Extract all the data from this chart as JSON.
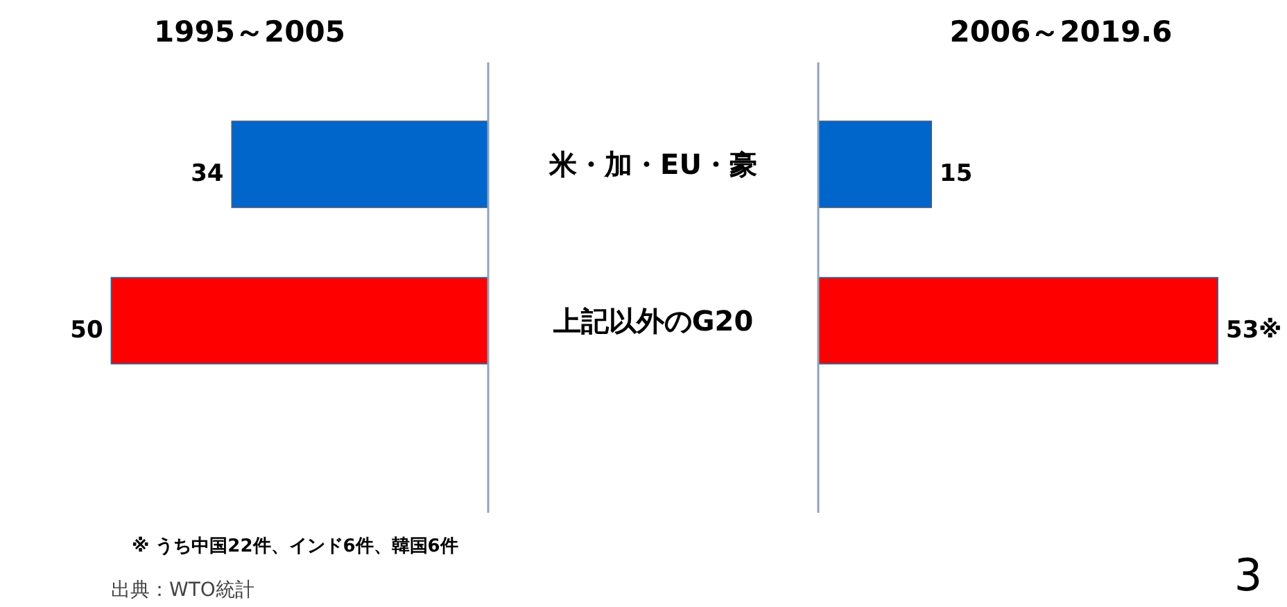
{
  "chart_data": [
    {
      "type": "bar",
      "orientation": "horizontal",
      "title": "1995～2005",
      "categories": [
        "米・加・EU・豪",
        "上記以外のG20"
      ],
      "values": [
        34,
        50
      ],
      "colors": [
        "#0066cc",
        "#ff0000"
      ],
      "data_labels": true
    },
    {
      "type": "bar",
      "orientation": "horizontal",
      "title": "2006～2019.6",
      "categories": [
        null,
        null
      ],
      "values": [
        15,
        53
      ],
      "colors": [
        "#0066cc",
        "#ff0000"
      ],
      "value_labels": [
        "15",
        "53※"
      ],
      "annotations": [
        "※ うち中国22件、インド6件、韓国6件",
        "出典：WTO統計",
        "3"
      ]
    }
  ]
}
